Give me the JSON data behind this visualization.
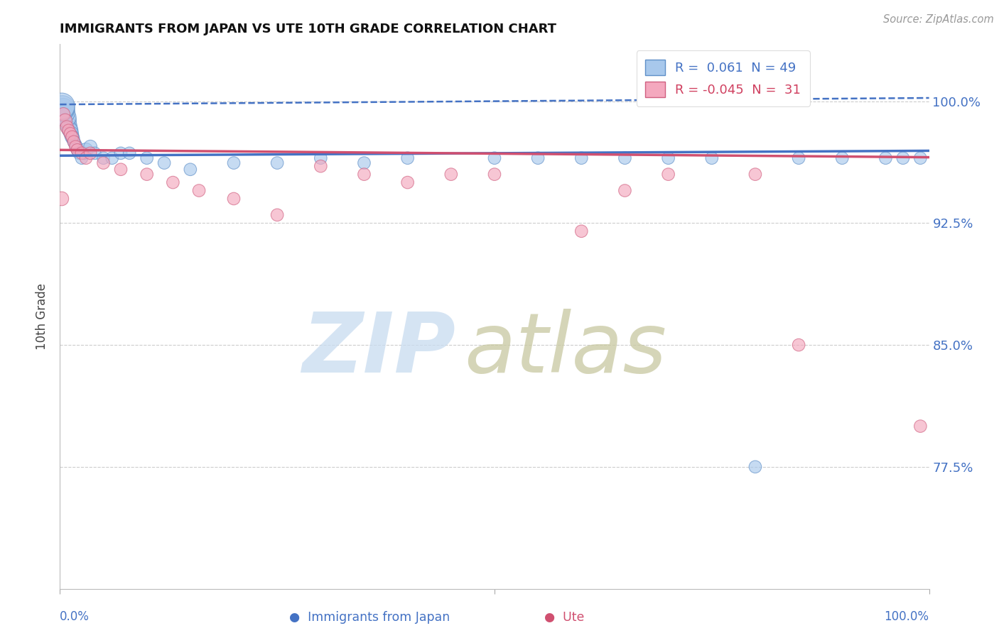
{
  "title": "IMMIGRANTS FROM JAPAN VS UTE 10TH GRADE CORRELATION CHART",
  "source": "Source: ZipAtlas.com",
  "ylabel": "10th Grade",
  "ytick_vals": [
    0.775,
    0.85,
    0.925,
    1.0
  ],
  "ytick_labels": [
    "77.5%",
    "85.0%",
    "92.5%",
    "100.0%"
  ],
  "xlim": [
    0.0,
    1.0
  ],
  "ylim": [
    0.7,
    1.035
  ],
  "R_blue": 0.061,
  "N_blue": 49,
  "R_pink": -0.045,
  "N_pink": 31,
  "blue_face_color": "#A8C8EC",
  "pink_face_color": "#F4A8BE",
  "blue_edge_color": "#6090C8",
  "pink_edge_color": "#D06080",
  "trend_blue_color": "#4472C4",
  "trend_pink_color": "#D05070",
  "legend_blue_color": "#4472C4",
  "legend_pink_color": "#D04060",
  "background_color": "#FFFFFF",
  "grid_color": "#CCCCCC",
  "axis_label_color": "#4472C4",
  "blue_scatter_x": [
    0.005,
    0.007,
    0.009,
    0.01,
    0.011,
    0.012,
    0.013,
    0.014,
    0.015,
    0.016,
    0.017,
    0.018,
    0.019,
    0.02,
    0.022,
    0.025,
    0.028,
    0.03,
    0.035,
    0.04,
    0.05,
    0.06,
    0.07,
    0.08,
    0.1,
    0.12,
    0.15,
    0.2,
    0.25,
    0.3,
    0.35,
    0.4,
    0.5,
    0.55,
    0.6,
    0.65,
    0.7,
    0.75,
    0.8,
    0.85,
    0.9,
    0.95,
    0.97,
    0.99,
    0.008,
    0.006,
    0.004,
    0.003,
    0.002
  ],
  "blue_scatter_y": [
    0.994,
    0.991,
    0.988,
    0.985,
    0.983,
    0.982,
    0.98,
    0.978,
    0.977,
    0.975,
    0.974,
    0.973,
    0.972,
    0.97,
    0.968,
    0.965,
    0.968,
    0.97,
    0.972,
    0.968,
    0.965,
    0.965,
    0.968,
    0.968,
    0.965,
    0.962,
    0.958,
    0.962,
    0.962,
    0.965,
    0.962,
    0.965,
    0.965,
    0.965,
    0.965,
    0.965,
    0.965,
    0.965,
    0.775,
    0.965,
    0.965,
    0.965,
    0.965,
    0.965,
    0.99,
    0.993,
    0.995,
    0.996,
    0.997
  ],
  "blue_scatter_size": [
    200,
    250,
    300,
    280,
    260,
    240,
    220,
    200,
    180,
    160,
    160,
    160,
    160,
    160,
    160,
    160,
    160,
    200,
    180,
    160,
    160,
    160,
    160,
    160,
    160,
    160,
    160,
    160,
    160,
    160,
    160,
    160,
    160,
    160,
    160,
    160,
    160,
    160,
    160,
    160,
    160,
    160,
    160,
    160,
    350,
    400,
    500,
    600,
    700
  ],
  "pink_scatter_x": [
    0.004,
    0.006,
    0.008,
    0.01,
    0.012,
    0.014,
    0.016,
    0.018,
    0.02,
    0.025,
    0.03,
    0.035,
    0.05,
    0.07,
    0.1,
    0.13,
    0.16,
    0.2,
    0.25,
    0.3,
    0.35,
    0.4,
    0.45,
    0.5,
    0.6,
    0.65,
    0.7,
    0.8,
    0.85,
    0.99,
    0.002
  ],
  "pink_scatter_y": [
    0.992,
    0.988,
    0.984,
    0.982,
    0.98,
    0.978,
    0.975,
    0.972,
    0.97,
    0.968,
    0.965,
    0.968,
    0.962,
    0.958,
    0.955,
    0.95,
    0.945,
    0.94,
    0.93,
    0.96,
    0.955,
    0.95,
    0.955,
    0.955,
    0.92,
    0.945,
    0.955,
    0.955,
    0.85,
    0.8,
    0.94
  ],
  "pink_scatter_size": [
    180,
    200,
    180,
    160,
    160,
    160,
    160,
    160,
    160,
    160,
    160,
    160,
    160,
    160,
    160,
    160,
    160,
    160,
    160,
    160,
    160,
    160,
    160,
    160,
    160,
    160,
    160,
    160,
    160,
    160,
    200
  ]
}
